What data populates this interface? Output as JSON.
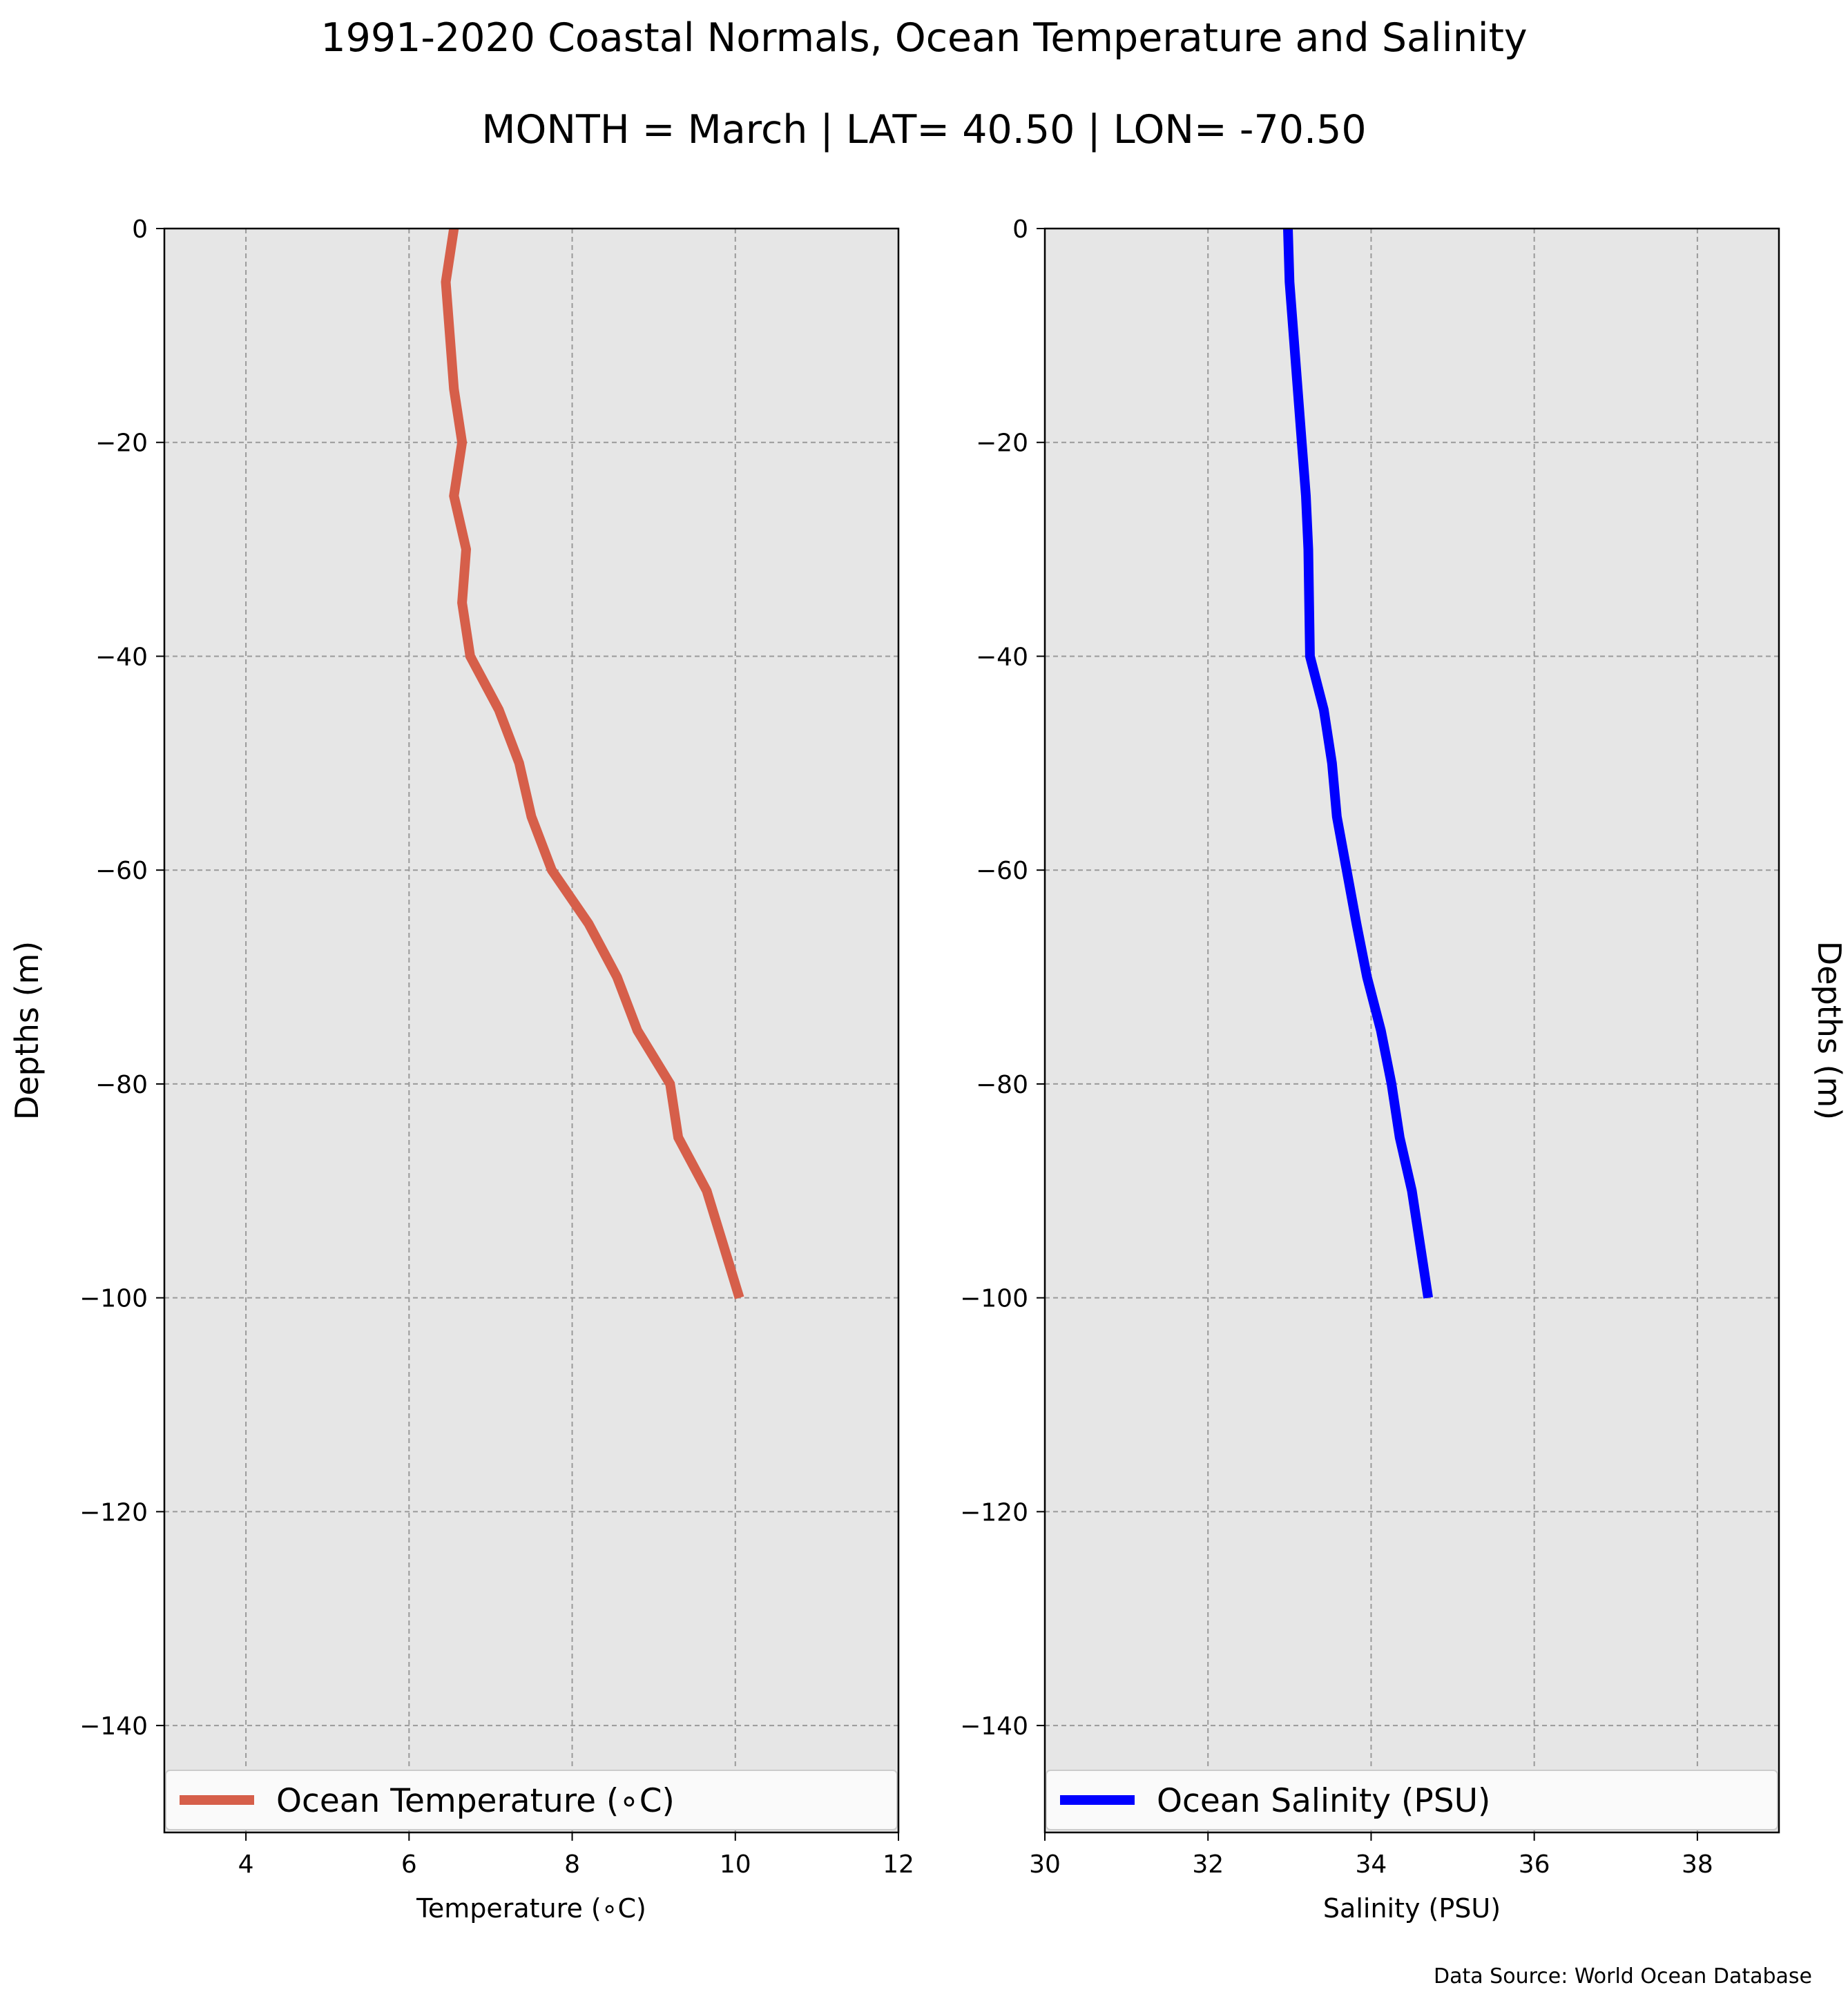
{
  "title_line1": "1991-2020 Coastal Normals, Ocean Temperature and Salinity",
  "title_line2": "MONTH = March | LAT= 40.50 | LON= -70.50",
  "footer": "Data Source: World Ocean Database",
  "chart_data": [
    {
      "type": "line",
      "xlabel": "Temperature (∘C)",
      "ylabel": "Depths (m)",
      "xlim": [
        3,
        12
      ],
      "ylim": [
        -150,
        0
      ],
      "xticks": [
        4,
        6,
        8,
        10,
        12
      ],
      "yticks": [
        0,
        -20,
        -40,
        -60,
        -80,
        -100,
        -120,
        -140
      ],
      "grid": true,
      "legend_position": "bottom",
      "color": "#d65f4a",
      "series": [
        {
          "name": "Ocean Temperature (∘C)",
          "x": [
            6.55,
            6.45,
            6.5,
            6.55,
            6.65,
            6.55,
            6.7,
            6.65,
            6.75,
            7.1,
            7.35,
            7.5,
            7.75,
            8.2,
            8.55,
            8.8,
            9.2,
            9.3,
            9.65,
            9.85,
            10.05
          ],
          "y": [
            0,
            -5,
            -10,
            -15,
            -20,
            -25,
            -30,
            -35,
            -40,
            -45,
            -50,
            -55,
            -60,
            -65,
            -70,
            -75,
            -80,
            -85,
            -90,
            -95,
            -100
          ]
        }
      ]
    },
    {
      "type": "line",
      "xlabel": "Salinity (PSU)",
      "ylabel": "Depths (m)",
      "xlim": [
        30,
        39
      ],
      "ylim": [
        -150,
        0
      ],
      "xticks": [
        30,
        32,
        34,
        36,
        38
      ],
      "yticks": [
        0,
        -20,
        -40,
        -60,
        -80,
        -100,
        -120,
        -140
      ],
      "grid": true,
      "legend_position": "bottom",
      "color": "#0000ff",
      "series": [
        {
          "name": "Ocean Salinity (PSU)",
          "x": [
            32.98,
            33.0,
            33.05,
            33.1,
            33.15,
            33.2,
            33.23,
            33.24,
            33.25,
            33.42,
            33.52,
            33.58,
            33.7,
            33.82,
            33.95,
            34.12,
            34.25,
            34.35,
            34.5,
            34.6,
            34.7
          ],
          "y": [
            0,
            -5,
            -10,
            -15,
            -20,
            -25,
            -30,
            -35,
            -40,
            -45,
            -50,
            -55,
            -60,
            -65,
            -70,
            -75,
            -80,
            -85,
            -90,
            -95,
            -100
          ]
        }
      ]
    }
  ]
}
